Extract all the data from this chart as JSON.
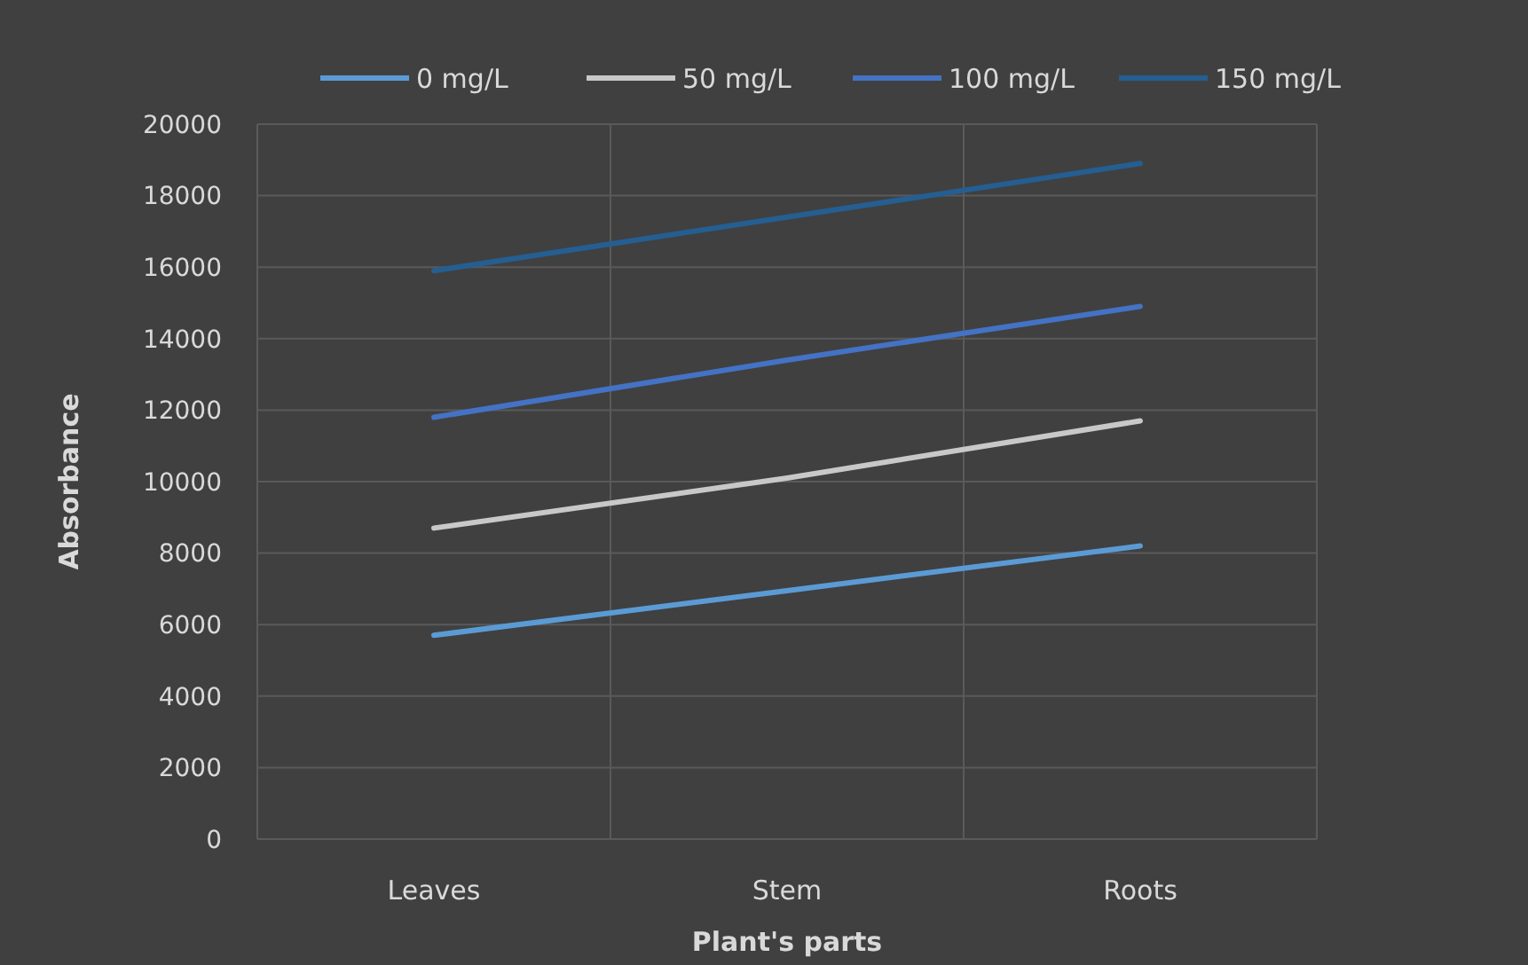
{
  "chart_data": {
    "type": "line",
    "xlabel": "Plant's parts",
    "ylabel": "Absorbance",
    "categories": [
      "Leaves",
      "Stem",
      "Roots"
    ],
    "series": [
      {
        "name": "0 mg/L",
        "color": "#5b9bd5",
        "values": [
          5700,
          6950,
          8200
        ]
      },
      {
        "name": "50 mg/L",
        "color": "#c8c8c8",
        "values": [
          8700,
          10100,
          11700
        ]
      },
      {
        "name": "100 mg/L",
        "color": "#4472c4",
        "values": [
          11800,
          13400,
          14900
        ]
      },
      {
        "name": "150 mg/L",
        "color": "#255e91",
        "values": [
          15900,
          17400,
          18900
        ]
      }
    ],
    "ylim": [
      0,
      20000
    ],
    "yticks": [
      0,
      2000,
      4000,
      6000,
      8000,
      10000,
      12000,
      14000,
      16000,
      18000,
      20000
    ],
    "grid": true,
    "legend": "top",
    "marker": "none",
    "line_style": "solid"
  }
}
